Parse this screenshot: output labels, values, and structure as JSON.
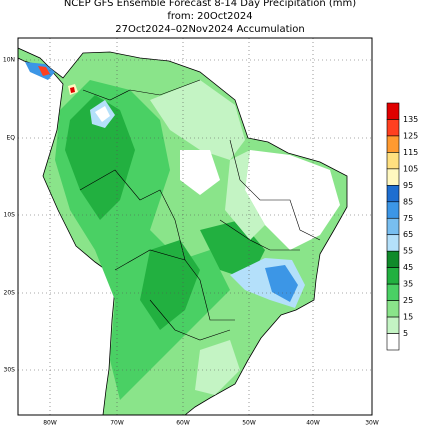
{
  "title": {
    "line1": "NCEP GFS Ensemble Forecast 8-14 Day Precipitation (mm)",
    "line2": "from: 20Oct2024",
    "line3": "27Oct2024–02Nov2024 Accumulation"
  },
  "map": {
    "lat_labels": [
      "10N",
      "EQ",
      "10S",
      "20S",
      "30S"
    ],
    "lon_labels": [
      "80W",
      "70W",
      "60W",
      "50W",
      "40W",
      "30W"
    ]
  },
  "legend": {
    "levels": [
      135,
      125,
      115,
      105,
      95,
      85,
      75,
      65,
      55,
      45,
      35,
      25,
      15,
      5
    ],
    "colors": [
      "#e00000",
      "#ff4020",
      "#ff9a30",
      "#ffe080",
      "#fff8c0",
      "#1e6ed0",
      "#3c96e6",
      "#78bef0",
      "#b4e0fa",
      "#108a2a",
      "#22b040",
      "#4ad064",
      "#8ae48a",
      "#c4f4c4",
      "#ffffff"
    ]
  }
}
